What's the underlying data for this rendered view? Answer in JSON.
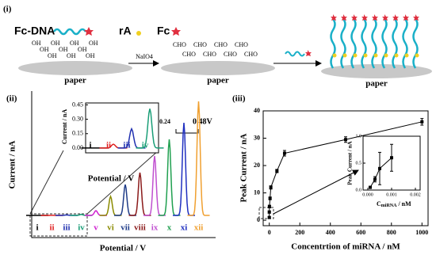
{
  "panel_i": {
    "label": "(i)",
    "fc_dna": "Fc-DNA",
    "ra": "rA",
    "fc": "Fc",
    "hydroxyls": [
      "OH",
      "OH",
      "OH",
      "OH",
      "OH",
      "OH",
      "OH",
      "OH",
      "OH",
      "OH"
    ],
    "aldehydes": [
      "CHO",
      "CHO",
      "CHO",
      "CHO",
      "CHO",
      "CHO",
      "CHO",
      "CHO"
    ],
    "papers": [
      "paper",
      "paper",
      "paper"
    ],
    "reagent": "NaIO4"
  },
  "chart_data": [
    {
      "type": "peaks",
      "panel_label": "(ii)",
      "y_label": "Current / nA",
      "x_label": "Potential / V",
      "ylim": [
        0,
        50
      ],
      "categories": [
        "i",
        "ii",
        "iii",
        "iv",
        "v",
        "vi",
        "vii",
        "viii",
        "ix",
        "x",
        "xi",
        "xii"
      ],
      "colors": [
        "#000000",
        "#e02020",
        "#2030b0",
        "#1a9e77",
        "#d020d0",
        "#8b8b00",
        "#1f3c88",
        "#8b1a1a",
        "#c050d0",
        "#20a050",
        "#2030c0",
        "#f0a030"
      ],
      "values": [
        0,
        0.04,
        0.2,
        0.41,
        2,
        8,
        13,
        18,
        25,
        32,
        39,
        48
      ],
      "annotations": [
        "0.24",
        "0.48V"
      ],
      "inset": {
        "y_label": "Current / nA",
        "x_label": "Potential / V",
        "ylim": [
          -0.05,
          0.47
        ],
        "yticks": [
          {
            "value": 0,
            "label": "0.00"
          },
          0.15,
          {
            "value": 0.3,
            "label": "0.30"
          },
          0.45
        ],
        "values": [
          0,
          0.04,
          0.2,
          0.41
        ]
      }
    },
    {
      "type": "scatter",
      "panel_label": "(iii)",
      "y_label": "Peak Current / nA",
      "x_label": "Concentrtion of miRNA / nM",
      "xlim": [
        -40,
        1040
      ],
      "ylim": [
        -2,
        40
      ],
      "xticks": [
        0,
        200,
        400,
        600,
        800,
        1000
      ],
      "yticks": [
        0,
        10,
        20,
        30,
        40
      ],
      "color": "#000000",
      "x": [
        0.01,
        0.1,
        1,
        5,
        10,
        50,
        100,
        500,
        1000
      ],
      "values": [
        1,
        3,
        5,
        8,
        12,
        18,
        24.5,
        29.5,
        36
      ],
      "errors": [
        0.3,
        0.4,
        0.5,
        0.5,
        0.6,
        0.6,
        1,
        1,
        1.2
      ],
      "inset": {
        "y_label": "Peak Current / nA",
        "x_label": {
          "main": "C",
          "subscript": "miRNA",
          "unit": " / nM"
        },
        "xlim": [
          -0.0002,
          0.0022
        ],
        "ylim": [
          0,
          1
        ],
        "xticks": [
          {
            "value": 0,
            "label": "0.000"
          },
          0.001,
          0.002
        ],
        "yticks": [
          {
            "value": 0,
            "label": "0.0"
          },
          0.5,
          {
            "value": 1,
            "label": "1.0"
          }
        ],
        "x": [
          0.0001,
          0.0003,
          0.0005,
          0.001
        ],
        "values": [
          0.05,
          0.2,
          0.4,
          0.6
        ],
        "errors": [
          0.02,
          0.05,
          0.3,
          0.25
        ]
      }
    }
  ]
}
